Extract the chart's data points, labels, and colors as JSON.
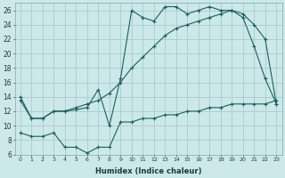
{
  "xlabel": "Humidex (Indice chaleur)",
  "background_color": "#cce8e8",
  "grid_color": "#aacccc",
  "line_color": "#1a6060",
  "xlim": [
    -0.5,
    23.5
  ],
  "ylim": [
    6,
    27
  ],
  "yticks": [
    6,
    8,
    10,
    12,
    14,
    16,
    18,
    20,
    22,
    24,
    26
  ],
  "xticks": [
    0,
    1,
    2,
    3,
    4,
    5,
    6,
    7,
    8,
    9,
    10,
    11,
    12,
    13,
    14,
    15,
    16,
    17,
    18,
    19,
    20,
    21,
    22,
    23
  ],
  "line1_x": [
    0,
    1,
    2,
    3,
    4,
    5,
    6,
    7,
    8,
    9,
    10,
    11,
    12,
    13,
    14,
    15,
    16,
    17,
    18,
    19,
    20,
    21,
    22,
    23
  ],
  "line1_y": [
    14.0,
    11.0,
    11.0,
    12.0,
    12.0,
    12.5,
    13.0,
    13.5,
    14.5,
    16.0,
    18.0,
    19.5,
    21.0,
    22.5,
    23.5,
    24.0,
    24.5,
    25.0,
    25.5,
    26.0,
    25.5,
    24.0,
    22.0,
    13.0
  ],
  "line2_x": [
    0,
    1,
    2,
    3,
    4,
    5,
    6,
    7,
    8,
    9,
    10,
    11,
    12,
    13,
    14,
    15,
    16,
    17,
    18,
    19,
    20,
    21,
    22,
    23
  ],
  "line2_y": [
    13.5,
    11.0,
    11.0,
    12.0,
    12.0,
    12.2,
    12.5,
    15.0,
    10.0,
    16.5,
    26.0,
    25.0,
    24.5,
    26.5,
    26.5,
    25.5,
    26.0,
    26.5,
    26.0,
    26.0,
    25.0,
    21.0,
    16.5,
    13.0
  ],
  "line3_x": [
    0,
    1,
    2,
    3,
    4,
    5,
    6,
    7,
    8,
    9,
    10,
    11,
    12,
    13,
    14,
    15,
    16,
    17,
    18,
    19,
    20,
    21,
    22,
    23
  ],
  "line3_y": [
    9.0,
    8.5,
    8.5,
    9.0,
    7.0,
    7.0,
    6.2,
    7.0,
    7.0,
    10.5,
    10.5,
    11.0,
    11.0,
    11.5,
    11.5,
    12.0,
    12.0,
    12.5,
    12.5,
    13.0,
    13.0,
    13.0,
    13.0,
    13.5
  ]
}
